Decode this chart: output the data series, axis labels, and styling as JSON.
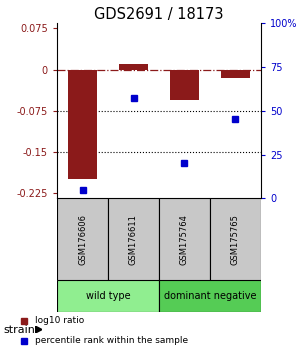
{
  "title": "GDS2691 / 18173",
  "samples": [
    "GSM176606",
    "GSM176611",
    "GSM175764",
    "GSM175765"
  ],
  "log10_ratios": [
    -0.2,
    0.01,
    -0.055,
    -0.015
  ],
  "percentile_ranks": [
    5,
    57,
    20,
    45
  ],
  "groups": [
    {
      "name": "wild type",
      "indices": [
        0,
        1
      ],
      "color": "#90EE90"
    },
    {
      "name": "dominant negative",
      "indices": [
        2,
        3
      ],
      "color": "#55CC55"
    }
  ],
  "bar_color": "#8B1A1A",
  "point_color": "#0000CC",
  "ylim_left": [
    -0.235,
    0.085
  ],
  "ylim_right": [
    0,
    100
  ],
  "yticks_left": [
    0.075,
    0,
    -0.075,
    -0.15,
    -0.225
  ],
  "yticks_right": [
    100,
    75,
    50,
    25,
    0
  ],
  "hline_y": 0,
  "dotted_lines": [
    -0.075,
    -0.15
  ],
  "strain_label": "strain",
  "legend_items": [
    {
      "label": "log10 ratio",
      "color": "#8B1A1A"
    },
    {
      "label": "percentile rank within the sample",
      "color": "#0000CC"
    }
  ]
}
